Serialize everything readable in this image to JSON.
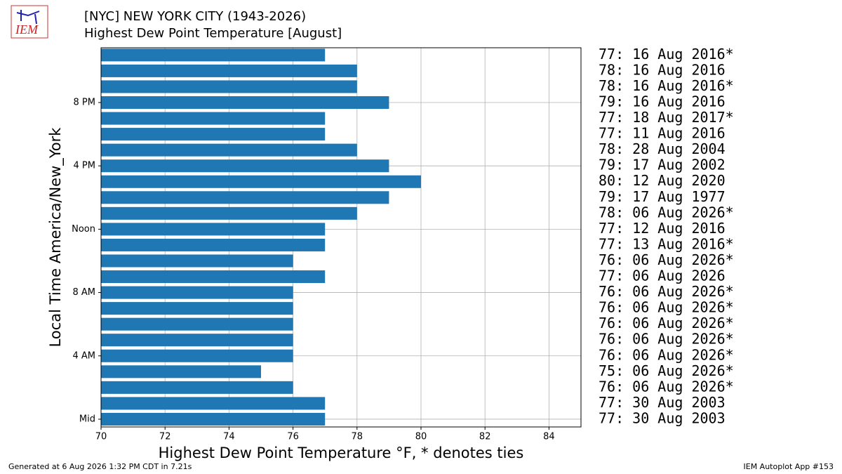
{
  "chart_data": {
    "type": "barh",
    "logo": "IEM",
    "title": "[NYC] NEW YORK CITY (1943-2026)",
    "subtitle": "Highest Dew Point Temperature [August]",
    "xlabel": "Highest Dew Point Temperature °F, * denotes ties",
    "ylabel": "Local Time America/New_York",
    "footer_left": "Generated at 6 Aug 2026 1:32 PM CDT in 7.21s",
    "footer_right": "IEM Autoplot App #153",
    "categories": [
      "Mid",
      null,
      null,
      null,
      "4 AM",
      null,
      null,
      null,
      "8 AM",
      null,
      null,
      null,
      "Noon",
      null,
      null,
      null,
      "4 PM",
      null,
      null,
      null,
      "8 PM",
      null,
      null,
      null
    ],
    "values": [
      77,
      77,
      76,
      75,
      76,
      76,
      76,
      76,
      76,
      77,
      76,
      77,
      77,
      78,
      79,
      80,
      79,
      78,
      77,
      77,
      79,
      78,
      78,
      77
    ],
    "annotations": [
      "77: 30 Aug 2003",
      "77: 30 Aug 2003",
      "76: 06 Aug 2026*",
      "75: 06 Aug 2026*",
      "76: 06 Aug 2026*",
      "76: 06 Aug 2026*",
      "76: 06 Aug 2026*",
      "76: 06 Aug 2026*",
      "76: 06 Aug 2026*",
      "77: 06 Aug 2026",
      "76: 06 Aug 2026*",
      "77: 13 Aug 2016*",
      "77: 12 Aug 2016",
      "78: 06 Aug 2026*",
      "79: 17 Aug 1977",
      "80: 12 Aug 2020",
      "79: 17 Aug 2002",
      "78: 28 Aug 2004",
      "77: 11 Aug 2016",
      "77: 18 Aug 2017*",
      "79: 16 Aug 2016",
      "78: 16 Aug 2016*",
      "78: 16 Aug 2016",
      "77: 16 Aug 2016*"
    ],
    "color": "#1f77b4",
    "xlim": [
      70,
      85
    ],
    "xticks": [
      70,
      72,
      74,
      76,
      78,
      80,
      82,
      84
    ],
    "grid": true
  }
}
